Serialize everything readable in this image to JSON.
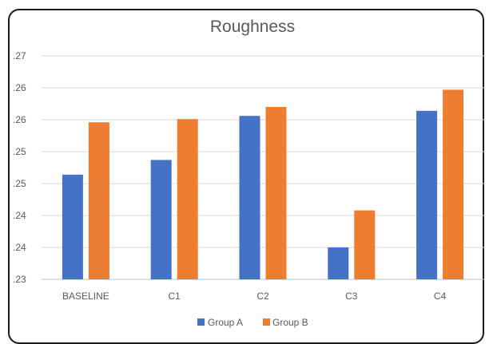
{
  "chart_data": {
    "type": "bar",
    "title": "Roughness",
    "xlabel": "",
    "ylabel": "",
    "categories": [
      "BASELINE",
      "C1",
      "C2",
      "C3",
      "C4"
    ],
    "y_tick_labels": [
      ".23",
      ".24",
      ".24",
      ".25",
      ".25",
      ".26",
      ".26",
      ".27"
    ],
    "ylim": [
      0.23,
      0.265
    ],
    "series": [
      {
        "name": "Group A",
        "color": "#4472C4",
        "values": [
          0.2464,
          0.2487,
          0.2556,
          0.235,
          0.2564
        ]
      },
      {
        "name": "Group B",
        "color": "#ED7D31",
        "values": [
          0.2546,
          0.2551,
          0.257,
          0.2408,
          0.2597
        ]
      }
    ],
    "grid": true,
    "legend_position": "bottom"
  }
}
